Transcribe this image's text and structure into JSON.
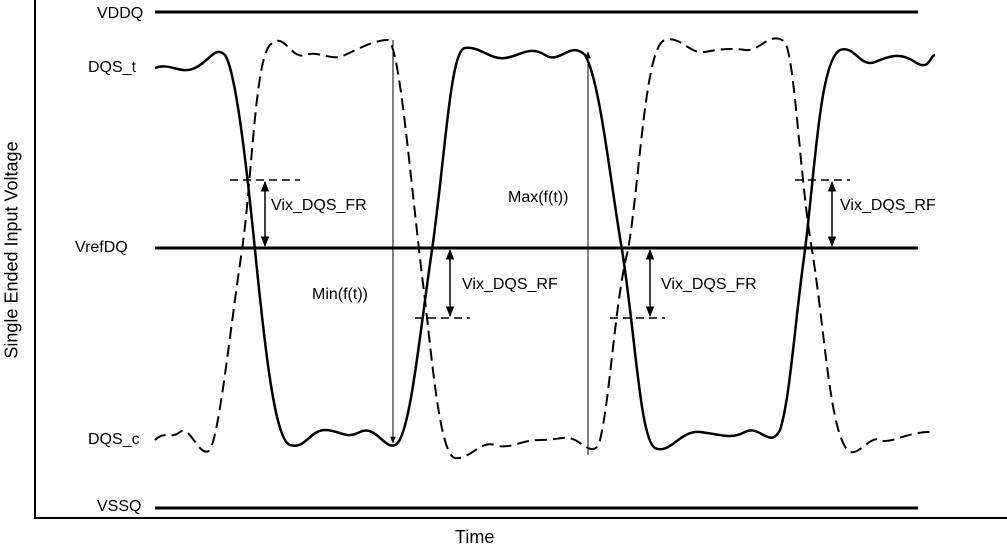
{
  "axes": {
    "y_label": "Single Ended Input Voltage",
    "x_label": "Time"
  },
  "levels": {
    "vddq": "VDDQ",
    "dqs_t": "DQS_t",
    "vrefdq": "VrefDQ",
    "dqs_c": "DQS_c",
    "vssq": "VSSQ"
  },
  "annotations": {
    "vix_fr_left": "Vix_DQS_FR",
    "min_ft": "Min(f(t))",
    "vix_rf_mid": "Vix_DQS_RF",
    "max_ft": "Max(f(t))",
    "vix_fr_mid": "Vix_DQS_FR",
    "vix_rf_right": "Vix_DQS_RF"
  },
  "colors": {
    "line": "#000000",
    "background": "#ffffff"
  }
}
